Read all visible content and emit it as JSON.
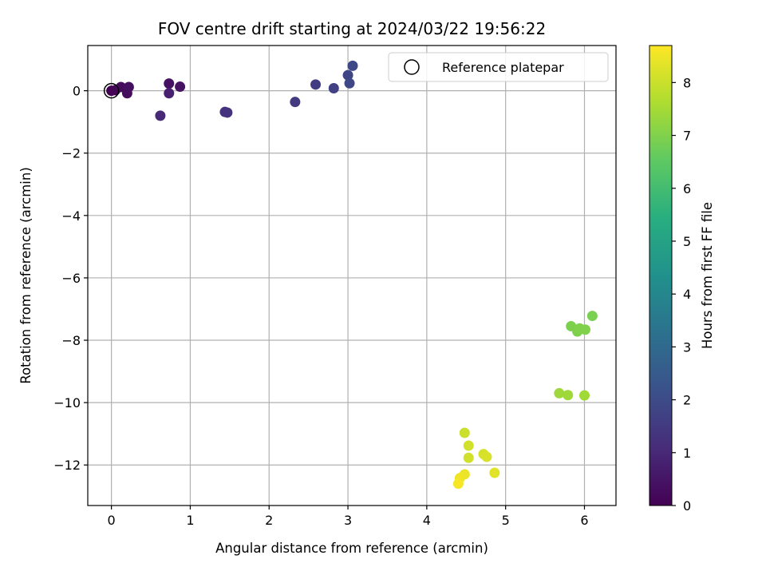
{
  "chart_data": {
    "type": "scatter",
    "title": "FOV centre drift starting at 2024/03/22 19:56:22",
    "xlabel": "Angular distance from reference (arcmin)",
    "ylabel": "Rotation from reference (arcmin)",
    "xlim": [
      -0.3,
      6.4
    ],
    "ylim": [
      -13.3,
      1.45
    ],
    "xticks": [
      0,
      1,
      2,
      3,
      4,
      5,
      6
    ],
    "yticks": [
      0,
      -2,
      -4,
      -6,
      -8,
      -10,
      -12
    ],
    "xtick_labels": [
      "0",
      "1",
      "2",
      "3",
      "4",
      "5",
      "6"
    ],
    "ytick_labels": [
      "0",
      "−2",
      "−4",
      "−6",
      "−8",
      "−10",
      "−12"
    ],
    "grid": true,
    "colormap": "viridis",
    "colorbar": {
      "label": "Hours from first FF file",
      "range": [
        0,
        8.7
      ],
      "ticks": [
        0,
        1,
        2,
        3,
        4,
        5,
        6,
        7,
        8
      ],
      "tick_labels": [
        "0",
        "1",
        "2",
        "3",
        "4",
        "5",
        "6",
        "7",
        "8"
      ]
    },
    "legend": {
      "location": "top-right",
      "entries": [
        {
          "label": "Reference platepar",
          "marker": "open-circle"
        }
      ]
    },
    "reference_point": {
      "x": 0,
      "y": 0
    },
    "points": [
      {
        "x": 0.0,
        "y": 0.0,
        "c": 0.0
      },
      {
        "x": 0.05,
        "y": 0.02,
        "c": 0.1
      },
      {
        "x": 0.12,
        "y": 0.12,
        "c": 0.25
      },
      {
        "x": 0.2,
        "y": -0.08,
        "c": 0.3
      },
      {
        "x": 0.22,
        "y": 0.12,
        "c": 0.35
      },
      {
        "x": 0.73,
        "y": 0.23,
        "c": 0.4
      },
      {
        "x": 0.87,
        "y": 0.13,
        "c": 0.45
      },
      {
        "x": 0.73,
        "y": -0.08,
        "c": 0.8
      },
      {
        "x": 0.62,
        "y": -0.8,
        "c": 1.0
      },
      {
        "x": 1.44,
        "y": -0.68,
        "c": 1.3
      },
      {
        "x": 1.47,
        "y": -0.7,
        "c": 1.3
      },
      {
        "x": 2.33,
        "y": -0.36,
        "c": 1.5
      },
      {
        "x": 2.59,
        "y": 0.2,
        "c": 1.6
      },
      {
        "x": 2.82,
        "y": 0.08,
        "c": 1.7
      },
      {
        "x": 3.0,
        "y": 0.5,
        "c": 1.8
      },
      {
        "x": 3.02,
        "y": 0.24,
        "c": 1.9
      },
      {
        "x": 3.06,
        "y": 0.8,
        "c": 1.9
      },
      {
        "x": 5.83,
        "y": -7.55,
        "c": 6.95
      },
      {
        "x": 5.91,
        "y": -7.72,
        "c": 6.95
      },
      {
        "x": 5.94,
        "y": -7.62,
        "c": 7.0
      },
      {
        "x": 6.01,
        "y": -7.66,
        "c": 7.0
      },
      {
        "x": 6.1,
        "y": -7.22,
        "c": 6.9
      },
      {
        "x": 5.68,
        "y": -9.7,
        "c": 7.4
      },
      {
        "x": 5.79,
        "y": -9.76,
        "c": 7.4
      },
      {
        "x": 6.0,
        "y": -9.77,
        "c": 7.45
      },
      {
        "x": 4.48,
        "y": -10.97,
        "c": 8.0
      },
      {
        "x": 4.53,
        "y": -11.38,
        "c": 8.1
      },
      {
        "x": 4.53,
        "y": -11.77,
        "c": 8.1
      },
      {
        "x": 4.72,
        "y": -11.65,
        "c": 8.15
      },
      {
        "x": 4.76,
        "y": -11.74,
        "c": 8.2
      },
      {
        "x": 4.86,
        "y": -12.25,
        "c": 8.3
      },
      {
        "x": 4.48,
        "y": -12.3,
        "c": 8.45
      },
      {
        "x": 4.42,
        "y": -12.42,
        "c": 8.5
      },
      {
        "x": 4.4,
        "y": -12.6,
        "c": 8.6
      }
    ]
  }
}
